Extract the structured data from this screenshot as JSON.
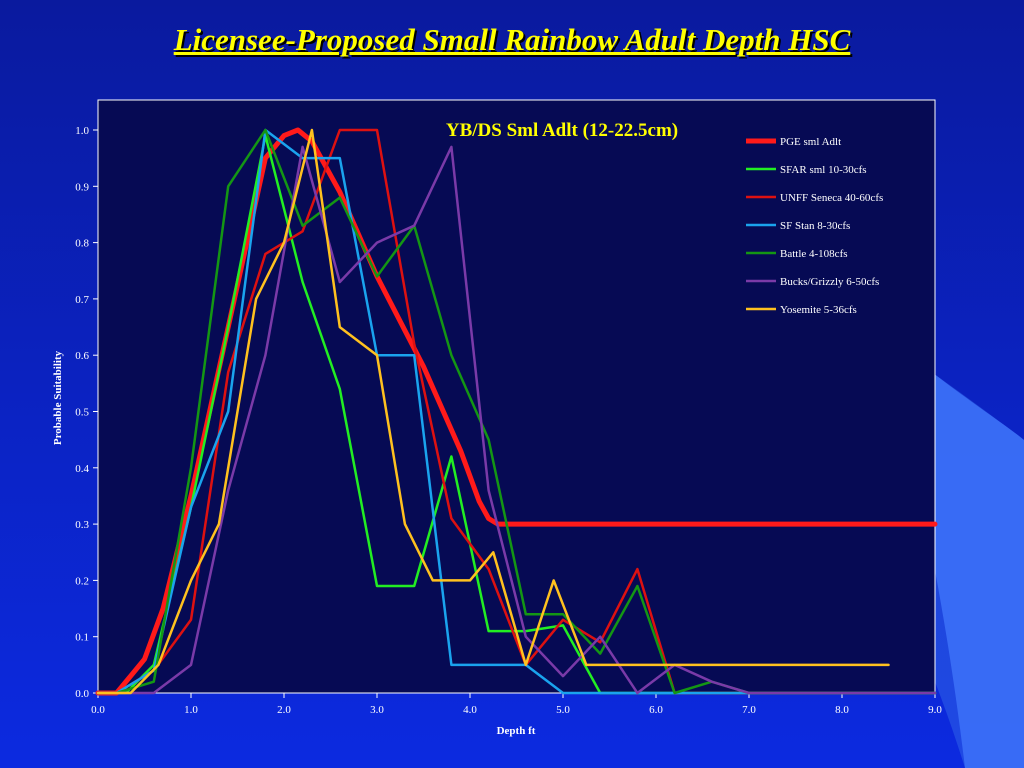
{
  "slide": {
    "title": "Licensee-Proposed Small Rainbow Adult Depth HSC"
  },
  "chart_data": {
    "type": "line",
    "title": "YB/DS Sml Adlt (12-22.5cm)",
    "xlabel": "Depth ft",
    "ylabel": "Probable Suitability",
    "xlim": [
      0,
      9
    ],
    "ylim": [
      0,
      1
    ],
    "xticks": [
      "0.0",
      "1.0",
      "2.0",
      "3.0",
      "4.0",
      "5.0",
      "6.0",
      "7.0",
      "8.0",
      "9.0"
    ],
    "yticks": [
      "0.0",
      "0.1",
      "0.2",
      "0.3",
      "0.4",
      "0.5",
      "0.6",
      "0.7",
      "0.8",
      "0.9",
      "1.0"
    ],
    "grid": false,
    "legend_position": "top-right",
    "series": [
      {
        "name": "PGE sml Adlt",
        "color": "#ff1a1a",
        "width": 5,
        "x": [
          0.0,
          0.2,
          0.5,
          0.7,
          1.0,
          1.4,
          1.8,
          2.0,
          2.15,
          2.3,
          2.6,
          3.0,
          3.5,
          3.9,
          4.1,
          4.2,
          4.3,
          9.0
        ],
        "y": [
          0.0,
          0.0,
          0.06,
          0.15,
          0.35,
          0.65,
          0.95,
          0.99,
          1.0,
          0.98,
          0.89,
          0.74,
          0.58,
          0.43,
          0.34,
          0.31,
          0.3,
          0.3
        ]
      },
      {
        "name": "SFAR sml 10-30cfs",
        "color": "#22ee22",
        "width": 2.5,
        "x": [
          0.0,
          0.3,
          0.6,
          1.0,
          1.4,
          1.8,
          2.2,
          2.6,
          3.0,
          3.4,
          3.8,
          4.2,
          4.6,
          5.0,
          5.4,
          9.0
        ],
        "y": [
          0.0,
          0.0,
          0.05,
          0.33,
          0.65,
          0.99,
          0.73,
          0.54,
          0.19,
          0.19,
          0.42,
          0.11,
          0.11,
          0.12,
          0.0,
          0.0
        ]
      },
      {
        "name": "UNFF Seneca 40-60cfs",
        "color": "#dd1111",
        "width": 2.5,
        "x": [
          0.0,
          0.2,
          0.6,
          1.0,
          1.4,
          1.8,
          2.2,
          2.6,
          3.0,
          3.4,
          3.8,
          4.2,
          4.6,
          5.0,
          5.4,
          5.8,
          6.2,
          9.0
        ],
        "y": [
          0.0,
          0.0,
          0.04,
          0.13,
          0.57,
          0.78,
          0.82,
          1.0,
          1.0,
          0.62,
          0.31,
          0.22,
          0.05,
          0.13,
          0.09,
          0.22,
          0.0,
          0.0
        ]
      },
      {
        "name": "SF Stan 8-30cfs",
        "color": "#1aa3ee",
        "width": 2.5,
        "x": [
          0.0,
          0.2,
          0.6,
          1.0,
          1.4,
          1.8,
          2.2,
          2.6,
          3.0,
          3.4,
          3.8,
          4.2,
          4.6,
          5.0,
          9.0
        ],
        "y": [
          0.0,
          0.0,
          0.04,
          0.33,
          0.5,
          1.0,
          0.95,
          0.95,
          0.6,
          0.6,
          0.05,
          0.05,
          0.05,
          0.0,
          0.0
        ]
      },
      {
        "name": "Battle 4-108cfs",
        "color": "#149614",
        "width": 2.5,
        "x": [
          0.0,
          0.2,
          0.6,
          1.0,
          1.4,
          1.8,
          2.2,
          2.6,
          3.0,
          3.4,
          3.8,
          4.2,
          4.6,
          5.0,
          5.4,
          5.8,
          6.2,
          6.6,
          7.0,
          9.0
        ],
        "y": [
          0.0,
          0.0,
          0.02,
          0.4,
          0.9,
          1.0,
          0.83,
          0.88,
          0.74,
          0.83,
          0.6,
          0.45,
          0.14,
          0.14,
          0.07,
          0.19,
          0.0,
          0.02,
          0.0,
          0.0
        ]
      },
      {
        "name": "Bucks/Grizzly 6-50cfs",
        "color": "#7a3aa8",
        "width": 2.5,
        "x": [
          0.0,
          0.2,
          0.6,
          1.0,
          1.4,
          1.8,
          2.2,
          2.6,
          3.0,
          3.4,
          3.8,
          4.2,
          4.6,
          5.0,
          5.4,
          5.8,
          6.2,
          6.6,
          7.0,
          9.0
        ],
        "y": [
          0.0,
          0.0,
          0.0,
          0.05,
          0.36,
          0.6,
          0.97,
          0.73,
          0.8,
          0.83,
          0.97,
          0.36,
          0.1,
          0.03,
          0.1,
          0.0,
          0.05,
          0.02,
          0.0,
          0.0
        ]
      },
      {
        "name": "Yosemite 5-36cfs",
        "color": "#ffc11f",
        "width": 2.5,
        "x": [
          0.0,
          0.35,
          0.65,
          1.0,
          1.3,
          1.7,
          2.0,
          2.3,
          2.6,
          3.0,
          3.3,
          3.6,
          4.0,
          4.25,
          4.6,
          4.9,
          5.25,
          8.5
        ],
        "y": [
          0.0,
          0.0,
          0.05,
          0.2,
          0.3,
          0.7,
          0.8,
          1.0,
          0.65,
          0.6,
          0.3,
          0.2,
          0.2,
          0.25,
          0.05,
          0.2,
          0.05,
          0.05
        ]
      }
    ]
  }
}
